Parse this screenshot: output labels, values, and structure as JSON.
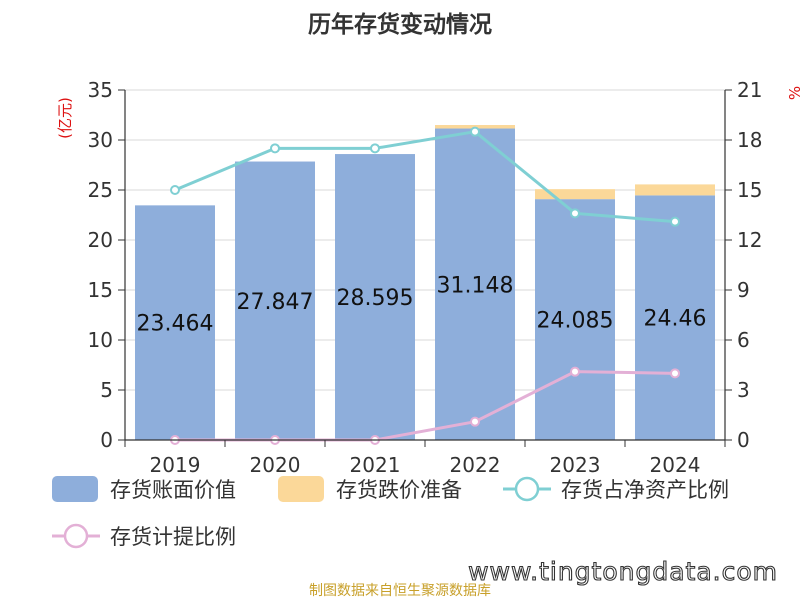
{
  "chart_data": {
    "type": "bar",
    "title": "历年存货变动情况",
    "categories": [
      "2019",
      "2020",
      "2021",
      "2022",
      "2023",
      "2024"
    ],
    "y_left": {
      "label": "(亿元)",
      "lim": [
        0,
        35
      ],
      "ticks": [
        0,
        5,
        10,
        15,
        20,
        25,
        30,
        35
      ]
    },
    "y_right": {
      "label": "%",
      "lim": [
        0,
        21
      ],
      "ticks": [
        0,
        3,
        6,
        9,
        12,
        15,
        18,
        21
      ]
    },
    "bars": [
      {
        "name": "存货账面价值",
        "color": "#8eaedb",
        "values": [
          23.464,
          27.847,
          28.595,
          31.148,
          24.085,
          24.46
        ],
        "value_labels": [
          "23.464",
          "27.847",
          "28.595",
          "31.148",
          "24.085",
          "24.46"
        ]
      },
      {
        "name": "存货跌价准备",
        "color": "#fbd899",
        "values": [
          0.0,
          0.0,
          0.0,
          0.35,
          1.0,
          1.1
        ]
      }
    ],
    "lines": [
      {
        "name": "存货占净资产比例",
        "color": "#7fcfd3",
        "axis": "right",
        "values": [
          15.0,
          17.5,
          17.5,
          18.5,
          13.6,
          13.1
        ]
      },
      {
        "name": "存货计提比例",
        "color": "#e3b0d6",
        "axis": "right",
        "values": [
          0.0,
          0.0,
          0.0,
          1.1,
          4.1,
          4.0
        ]
      }
    ],
    "legend": "bottom",
    "grid": true
  },
  "source_note": "制图数据来自恒生聚源数据库",
  "watermark": "www.tingtongdata.com"
}
